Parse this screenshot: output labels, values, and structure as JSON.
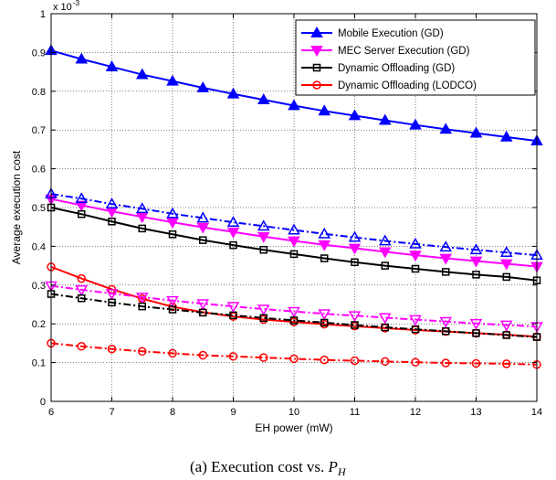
{
  "chart_data": {
    "type": "line",
    "x_axis_label": "EH power (mW)",
    "y_axis_label": "Average execution cost",
    "y_exponent_label": "x 10",
    "y_exponent_power": "-3",
    "x_ticks": [
      6,
      7,
      8,
      9,
      10,
      11,
      12,
      13,
      14
    ],
    "y_ticks": [
      0,
      0.1,
      0.2,
      0.3,
      0.4,
      0.5,
      0.6,
      0.7,
      0.8,
      0.9,
      1
    ],
    "xlim": [
      6,
      14
    ],
    "ylim": [
      0,
      1
    ],
    "grid": true,
    "legend_position": "top-right",
    "x": [
      6,
      6.5,
      7,
      7.5,
      8,
      8.5,
      9,
      9.5,
      10,
      10.5,
      11,
      11.5,
      12,
      12.5,
      13,
      13.5,
      14
    ],
    "series": [
      {
        "name": "Mobile Execution (GD)",
        "legend": true,
        "color": "#0000ff",
        "marker": "triangle-up",
        "filled": true,
        "dash": "solid",
        "values": [
          0.905,
          0.883,
          0.863,
          0.843,
          0.826,
          0.809,
          0.793,
          0.778,
          0.763,
          0.749,
          0.737,
          0.725,
          0.713,
          0.702,
          0.692,
          0.682,
          0.672
        ]
      },
      {
        "name": "MEC Server Execution (GD)",
        "legend": true,
        "color": "#ff00ff",
        "marker": "triangle-down",
        "filled": true,
        "dash": "solid",
        "values": [
          0.522,
          0.506,
          0.49,
          0.476,
          0.462,
          0.449,
          0.437,
          0.425,
          0.414,
          0.404,
          0.395,
          0.386,
          0.377,
          0.369,
          0.362,
          0.355,
          0.348
        ]
      },
      {
        "name": "Dynamic Offloading (GD)",
        "legend": true,
        "color": "#000000",
        "marker": "square",
        "filled": false,
        "dash": "solid",
        "values": [
          0.5,
          0.483,
          0.464,
          0.446,
          0.431,
          0.416,
          0.403,
          0.391,
          0.38,
          0.369,
          0.359,
          0.35,
          0.342,
          0.334,
          0.327,
          0.321,
          0.312
        ]
      },
      {
        "name": "Dynamic Offloading (LODCO)",
        "legend": true,
        "color": "#ff0000",
        "marker": "circle",
        "filled": false,
        "dash": "solid",
        "values": [
          0.347,
          0.317,
          0.289,
          0.265,
          0.244,
          0.23,
          0.219,
          0.211,
          0.205,
          0.199,
          0.194,
          0.189,
          0.184,
          0.18,
          0.176,
          0.172,
          0.167
        ]
      },
      {
        "legend": false,
        "color": "#0000ff",
        "marker": "triangle-up",
        "filled": false,
        "dash": "dashdot",
        "values": [
          0.535,
          0.523,
          0.509,
          0.497,
          0.484,
          0.473,
          0.462,
          0.452,
          0.442,
          0.432,
          0.423,
          0.414,
          0.406,
          0.398,
          0.391,
          0.384,
          0.377
        ]
      },
      {
        "legend": false,
        "color": "#ff00ff",
        "marker": "triangle-down",
        "filled": false,
        "dash": "dashdot",
        "values": [
          0.298,
          0.288,
          0.278,
          0.269,
          0.26,
          0.252,
          0.245,
          0.238,
          0.232,
          0.226,
          0.221,
          0.216,
          0.211,
          0.206,
          0.201,
          0.197,
          0.193
        ]
      },
      {
        "legend": false,
        "color": "#000000",
        "marker": "square",
        "filled": false,
        "dash": "dashdot",
        "values": [
          0.277,
          0.266,
          0.255,
          0.245,
          0.237,
          0.229,
          0.222,
          0.215,
          0.209,
          0.203,
          0.197,
          0.191,
          0.186,
          0.181,
          0.176,
          0.171,
          0.166
        ]
      },
      {
        "legend": false,
        "color": "#ff0000",
        "marker": "circle",
        "filled": false,
        "dash": "dashdot",
        "values": [
          0.15,
          0.142,
          0.135,
          0.129,
          0.124,
          0.119,
          0.116,
          0.113,
          0.11,
          0.107,
          0.105,
          0.103,
          0.101,
          0.099,
          0.098,
          0.097,
          0.095
        ]
      }
    ]
  },
  "caption": {
    "text": "(a) Execution cost vs. ",
    "symbol": "P",
    "subscript": "H"
  }
}
